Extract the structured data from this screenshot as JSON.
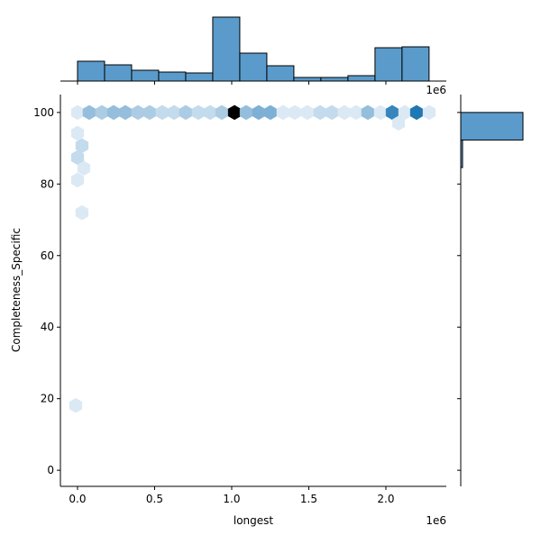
{
  "chart_data": {
    "type": "hexbin",
    "x_label": "longest",
    "y_label": "Completeness_Specific",
    "x_offset_label": "1e6",
    "xlim": [
      -111000,
      2392000
    ],
    "ylim": [
      -4.5,
      105
    ],
    "xticks": [
      {
        "value": 0,
        "label": "0.0"
      },
      {
        "value": 500000,
        "label": "0.5"
      },
      {
        "value": 1000000,
        "label": "1.0"
      },
      {
        "value": 1500000,
        "label": "1.5"
      },
      {
        "value": 2000000,
        "label": "2.0"
      }
    ],
    "yticks": [
      0,
      20,
      40,
      60,
      80,
      100
    ],
    "color": "#1f77b4",
    "hist_color": "#5a9bcb",
    "hexes": {
      "x": [
        0,
        76000,
        158000,
        234000,
        310000,
        392000,
        468000,
        550000,
        626000,
        702000,
        784000,
        860000,
        936000,
        1018000,
        1094000,
        1175000,
        1251000,
        1333000,
        1409000,
        1491000,
        1573000,
        1649000,
        1731000,
        1807000,
        1883000,
        1965000,
        2041000,
        2123000,
        2199000,
        2281000,
        0,
        29000,
        0,
        41000,
        0,
        29000,
        -12000,
        2082000
      ],
      "y": [
        100,
        100,
        100,
        100,
        100,
        100,
        100,
        100,
        100,
        100,
        100,
        100,
        100,
        100,
        100,
        100,
        100,
        100,
        100,
        100,
        100,
        100,
        100,
        100,
        100,
        100,
        100,
        100,
        100,
        100,
        94.2,
        90.7,
        87.4,
        84.4,
        81.1,
        72,
        18.1,
        97
      ],
      "counts": [
        1,
        4,
        3,
        4,
        4,
        3,
        3,
        2,
        2,
        3,
        2,
        2,
        3,
        12,
        4,
        5,
        5,
        1,
        1,
        1,
        2,
        2,
        1,
        1,
        4,
        1,
        8,
        1,
        9,
        1,
        1,
        2,
        2,
        1,
        1,
        1,
        1,
        1
      ]
    },
    "marginal_x": {
      "bins": [
        0,
        175400,
        350800,
        526200,
        701600,
        877000,
        1052400,
        1227800,
        1403200,
        1578600,
        1754000,
        1929400,
        2104800,
        2280200
      ],
      "counts": [
        22,
        18,
        12,
        10,
        9,
        71,
        31,
        17,
        4,
        4,
        6,
        37,
        38
      ]
    },
    "marginal_y": {
      "bins": [
        84.6,
        92.3,
        100
      ],
      "counts": [
        2,
        69
      ]
    }
  }
}
